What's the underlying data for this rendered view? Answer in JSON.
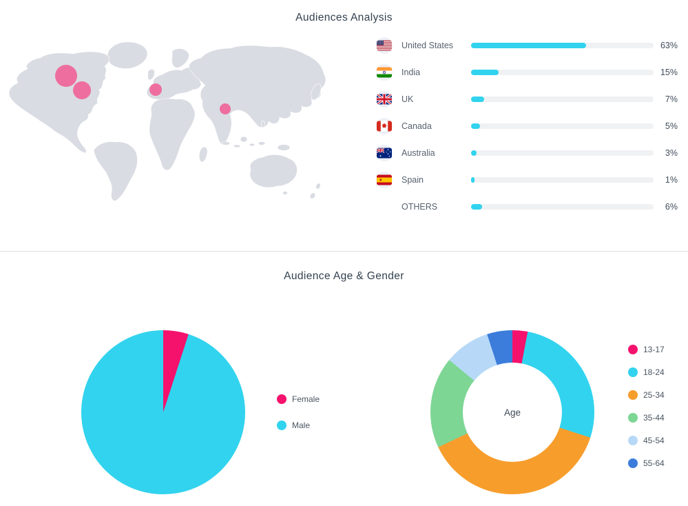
{
  "colors": {
    "accent_cyan": "#32D3EE",
    "accent_pink": "#F4126D",
    "bubble_pink": "#EE6E9F",
    "map_land": "#D9DCE2",
    "bar_track": "#F0F1F3",
    "title_text": "#33414F",
    "label_text": "#57616E",
    "value_text": "#404C5A",
    "divider": "#DCDEE1"
  },
  "section_audiences": {
    "title": "Audiences Analysis",
    "map": {
      "bubbles": [
        {
          "x": 86,
          "y": 60,
          "r": 16
        },
        {
          "x": 109,
          "y": 81,
          "r": 13
        },
        {
          "x": 216,
          "y": 80,
          "r": 9
        },
        {
          "x": 317,
          "y": 108,
          "r": 8
        }
      ]
    },
    "countries": [
      {
        "label": "United States",
        "percent": "63%",
        "value": 63,
        "flag": "us"
      },
      {
        "label": "India",
        "percent": "15%",
        "value": 15,
        "flag": "in"
      },
      {
        "label": "UK",
        "percent": "7%",
        "value": 7,
        "flag": "gb"
      },
      {
        "label": "Canada",
        "percent": "5%",
        "value": 5,
        "flag": "ca"
      },
      {
        "label": "Australia",
        "percent": "3%",
        "value": 3,
        "flag": "au"
      },
      {
        "label": "Spain",
        "percent": "1%",
        "value": 1,
        "flag": "es"
      },
      {
        "label": "OTHERS",
        "percent": "6%",
        "value": 6,
        "flag": null
      }
    ]
  },
  "section_age_gender": {
    "title": "Audience Age & Gender",
    "gender": {
      "legend": [
        {
          "label": "Female",
          "value": 5,
          "color": "#F4126D"
        },
        {
          "label": "Male",
          "value": 95,
          "color": "#32D3EE"
        }
      ]
    },
    "age": {
      "center_label": "Age",
      "legend": [
        {
          "label": "13-17",
          "value": 3,
          "color": "#F4126D"
        },
        {
          "label": "18-24",
          "value": 27,
          "color": "#32D3EE"
        },
        {
          "label": "25-34",
          "value": 38,
          "color": "#F79D2C"
        },
        {
          "label": "35-44",
          "value": 18,
          "color": "#7ED695"
        },
        {
          "label": "45-54",
          "value": 9,
          "color": "#B7D9F7"
        },
        {
          "label": "55-64",
          "value": 5,
          "color": "#3C7DDB"
        }
      ]
    }
  },
  "chart_data": [
    {
      "type": "bar",
      "title": "Audiences Analysis",
      "orientation": "horizontal",
      "categories": [
        "United States",
        "India",
        "UK",
        "Canada",
        "Australia",
        "Spain",
        "OTHERS"
      ],
      "values": [
        63,
        15,
        7,
        5,
        3,
        1,
        6
      ],
      "unit": "%",
      "xlim": [
        0,
        100
      ],
      "legend_position": "none",
      "grid": false
    },
    {
      "type": "pie",
      "title": "Gender",
      "labels": [
        "Female",
        "Male"
      ],
      "values": [
        5,
        95
      ],
      "unit": "%",
      "legend_position": "right",
      "start_angle_deg": 0
    },
    {
      "type": "pie",
      "subtype": "donut",
      "title": "Age",
      "center_label": "Age",
      "labels": [
        "13-17",
        "18-24",
        "25-34",
        "35-44",
        "45-54",
        "55-64"
      ],
      "values": [
        3,
        27,
        38,
        18,
        9,
        5
      ],
      "unit": "%",
      "legend_position": "right",
      "start_angle_deg": 0
    }
  ]
}
